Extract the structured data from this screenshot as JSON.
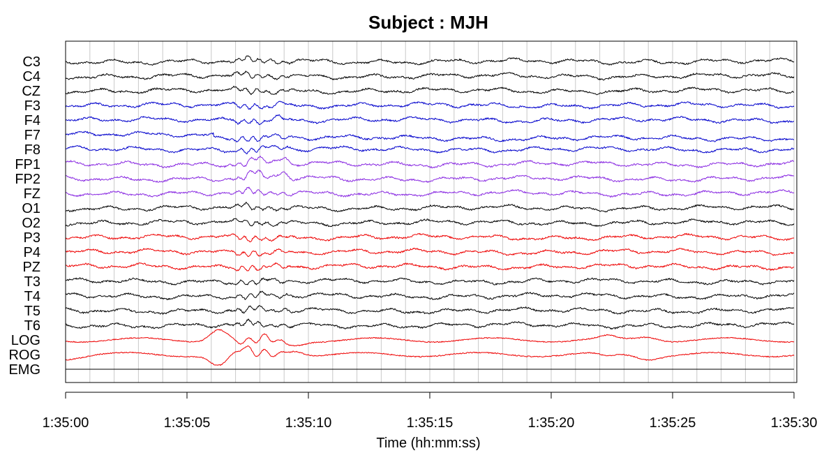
{
  "chart_data": {
    "type": "line",
    "title": "Subject : MJH",
    "xlabel": "Time (hh:mm:ss)",
    "ylabel": "",
    "x_ticks": [
      "1:35:00",
      "1:35:05",
      "1:35:10",
      "1:35:15",
      "1:35:20",
      "1:35:25",
      "1:35:30"
    ],
    "xlim_seconds": [
      0,
      30
    ],
    "vertical_gridlines_every_seconds": 1,
    "grid": true,
    "legend": "none",
    "channels": [
      {
        "name": "C3",
        "color": "#000000"
      },
      {
        "name": "C4",
        "color": "#000000"
      },
      {
        "name": "CZ",
        "color": "#000000"
      },
      {
        "name": "F3",
        "color": "#0000cc"
      },
      {
        "name": "F4",
        "color": "#0000cc"
      },
      {
        "name": "F7",
        "color": "#0000cc"
      },
      {
        "name": "F8",
        "color": "#0000cc"
      },
      {
        "name": "FP1",
        "color": "#8a2be2"
      },
      {
        "name": "FP2",
        "color": "#8a2be2"
      },
      {
        "name": "FZ",
        "color": "#8a2be2"
      },
      {
        "name": "O1",
        "color": "#000000"
      },
      {
        "name": "O2",
        "color": "#000000"
      },
      {
        "name": "P3",
        "color": "#ee0000"
      },
      {
        "name": "P4",
        "color": "#ee0000"
      },
      {
        "name": "PZ",
        "color": "#ee0000"
      },
      {
        "name": "T3",
        "color": "#000000"
      },
      {
        "name": "T4",
        "color": "#000000"
      },
      {
        "name": "T5",
        "color": "#000000"
      },
      {
        "name": "T6",
        "color": "#000000"
      },
      {
        "name": "LOG",
        "color": "#ee0000"
      },
      {
        "name": "ROG",
        "color": "#ee0000"
      },
      {
        "name": "EMG",
        "color": "#000000"
      }
    ]
  }
}
